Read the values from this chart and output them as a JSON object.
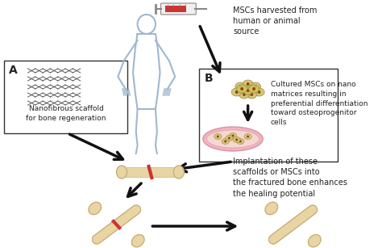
{
  "bg_color": "#ffffff",
  "text_msc_harvested": "MSCs harvested from\nhuman or animal\nsource",
  "text_cultured": "Cultured MSCs on nano\nmatrices resulting in\npreferential differentiation\ntoward osteoprogenitor\ncells",
  "text_implantation": "Implantation of these\nscaffolds or MSCs into\nthe fractured bone enhances\nthe healing potential",
  "text_nanofibrous": "Nanofibrous scaffold\nfor bone regeneration",
  "label_A": "A",
  "label_B": "B",
  "bone_color": "#e8d5a3",
  "bone_outline": "#c8b07a",
  "human_color": "#a0b8d0",
  "scaffold_color": "#555555",
  "arrow_color": "#111111",
  "cell_color": "#d4c060",
  "petri_color": "#f0a0b0",
  "red_color": "#cc3333",
  "font_size_text": 7,
  "font_size_label": 10
}
